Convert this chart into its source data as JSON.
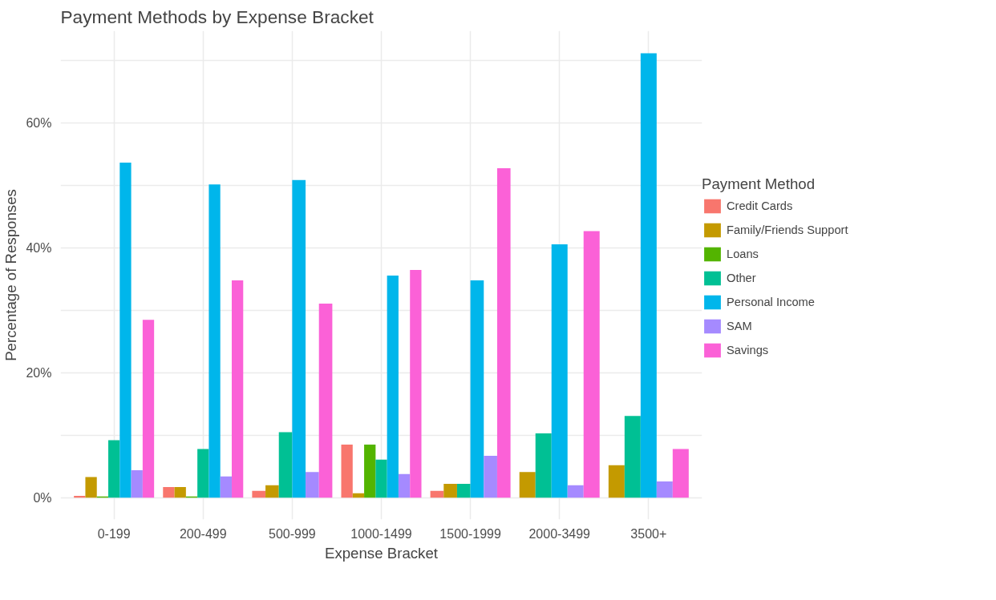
{
  "chart_data": {
    "type": "bar",
    "title": "Payment Methods by Expense Bracket",
    "xlabel": "Expense Bracket",
    "ylabel": "Percentage of Responses",
    "legend_title": "Payment Method",
    "legend": "right",
    "grid": true,
    "categories": [
      "0-199",
      "200-499",
      "500-999",
      "1000-1499",
      "1500-1999",
      "2000-3499",
      "3500+"
    ],
    "ylim": [
      -3.5,
      74.8
    ],
    "yticks": [
      {
        "value": 0,
        "label": "0%"
      },
      {
        "value": 10,
        "label": null
      },
      {
        "value": 20,
        "label": "20%"
      },
      {
        "value": 30,
        "label": null
      },
      {
        "value": 40,
        "label": "40%"
      },
      {
        "value": 50,
        "label": null
      },
      {
        "value": 60,
        "label": "60%"
      },
      {
        "value": 70,
        "label": null
      }
    ],
    "series": [
      {
        "name": "Credit Cards",
        "color": "#f8766d",
        "values": [
          0.3,
          1.7,
          1.1,
          8.5,
          1.1,
          null,
          null
        ]
      },
      {
        "name": "Family/Friends Support",
        "color": "#c49a00",
        "values": [
          3.3,
          1.7,
          2.0,
          0.7,
          2.2,
          4.1,
          5.2
        ]
      },
      {
        "name": "Loans",
        "color": "#53b400",
        "values": [
          0.2,
          0.2,
          null,
          8.5,
          null,
          null,
          null
        ]
      },
      {
        "name": "Other",
        "color": "#00c094",
        "values": [
          9.2,
          7.8,
          10.5,
          6.1,
          2.2,
          10.3,
          13.1
        ]
      },
      {
        "name": "Personal Income",
        "color": "#00b6eb",
        "values": [
          53.7,
          50.2,
          50.9,
          35.6,
          34.8,
          40.6,
          71.2
        ]
      },
      {
        "name": "SAM",
        "color": "#a58aff",
        "values": [
          4.4,
          3.4,
          4.1,
          3.8,
          6.7,
          2.0,
          2.6
        ]
      },
      {
        "name": "Savings",
        "color": "#fb61d7",
        "values": [
          28.5,
          34.8,
          31.1,
          36.5,
          52.8,
          42.7,
          7.8
        ]
      }
    ]
  }
}
